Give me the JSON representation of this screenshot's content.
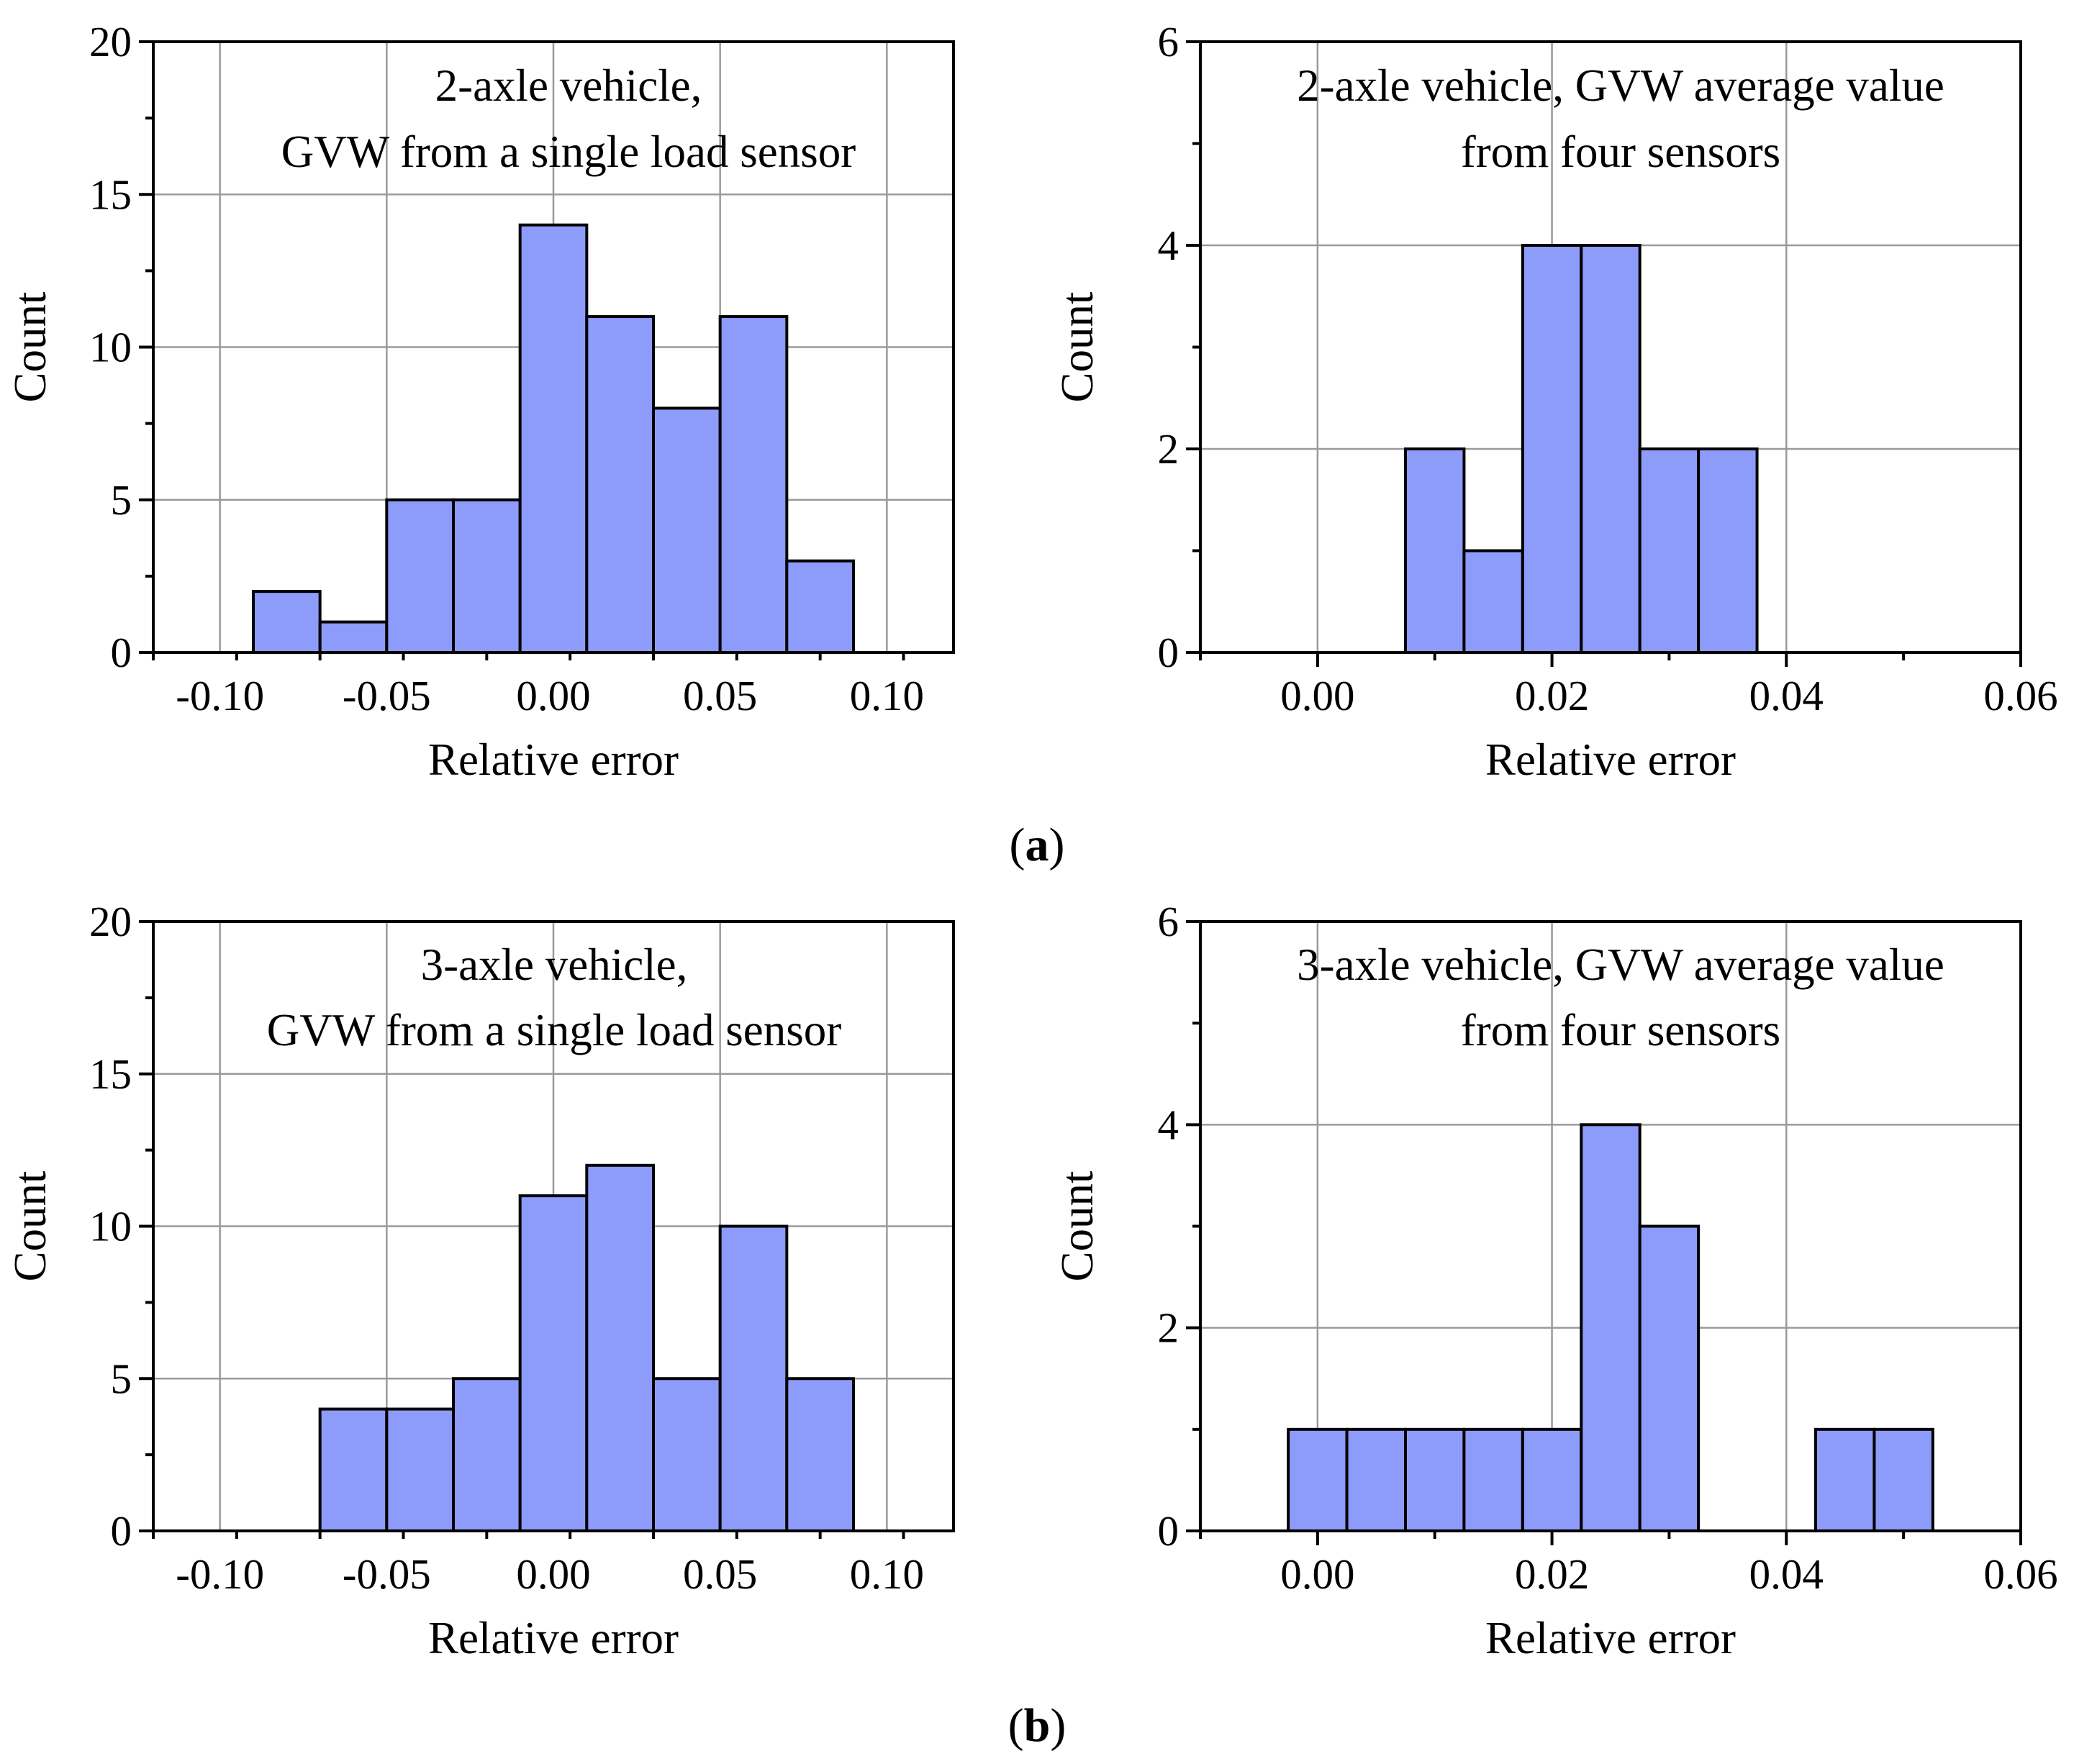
{
  "figure": {
    "caption_a_letter": "a",
    "caption_b_letter": "b",
    "colors": {
      "bar_fill": "#8d9bfb",
      "bar_stroke": "#000000",
      "grid": "#9a9a9a",
      "axis": "#000000"
    }
  },
  "chart_data": [
    {
      "type": "bar",
      "panel": "a-left",
      "title_lines": [
        "2-axle vehicle,",
        "GVW from a single load sensor"
      ],
      "xlabel": "Relative error",
      "ylabel": "Count",
      "xlim": [
        -0.12,
        0.12
      ],
      "ylim": [
        0,
        20
      ],
      "xticks": [
        -0.1,
        -0.05,
        0.0,
        0.05,
        0.1
      ],
      "xtick_labels": [
        "-0.10",
        "-0.05",
        "0.00",
        "0.05",
        "0.10"
      ],
      "yticks": [
        0,
        5,
        10,
        15,
        20
      ],
      "ytick_labels": [
        "0",
        "5",
        "10",
        "15",
        "20"
      ],
      "bin_width": 0.02,
      "bin_starts": [
        -0.09,
        -0.07,
        -0.05,
        -0.03,
        -0.01,
        0.01,
        0.03,
        0.05,
        0.07
      ],
      "values": [
        2,
        1,
        5,
        5,
        14,
        11,
        8,
        11,
        3
      ],
      "grid": true
    },
    {
      "type": "bar",
      "panel": "a-right",
      "title_lines": [
        "2-axle vehicle, GVW average value",
        "from four sensors"
      ],
      "xlabel": "Relative error",
      "ylabel": "Count",
      "xlim": [
        -0.01,
        0.06
      ],
      "ylim": [
        0,
        6
      ],
      "xticks": [
        0.0,
        0.02,
        0.04,
        0.06
      ],
      "xtick_labels": [
        "0.00",
        "0.02",
        "0.04",
        "0.06"
      ],
      "yticks": [
        0,
        2,
        4,
        6
      ],
      "ytick_labels": [
        "0",
        "2",
        "4",
        "6"
      ],
      "bin_width": 0.005,
      "bin_starts": [
        0.0075,
        0.0125,
        0.0175,
        0.0225,
        0.0275,
        0.0325
      ],
      "values": [
        2,
        1,
        4,
        4,
        2,
        2
      ],
      "grid": true
    },
    {
      "type": "bar",
      "panel": "b-left",
      "title_lines": [
        "3-axle vehicle,",
        "GVW from a single load sensor"
      ],
      "xlabel": "Relative error",
      "ylabel": "Count",
      "xlim": [
        -0.12,
        0.12
      ],
      "ylim": [
        0,
        20
      ],
      "xticks": [
        -0.1,
        -0.05,
        0.0,
        0.05,
        0.1
      ],
      "xtick_labels": [
        "-0.10",
        "-0.05",
        "0.00",
        "0.05",
        "0.10"
      ],
      "yticks": [
        0,
        5,
        10,
        15,
        20
      ],
      "ytick_labels": [
        "0",
        "5",
        "10",
        "15",
        "20"
      ],
      "bin_width": 0.02,
      "bin_starts": [
        -0.07,
        -0.05,
        -0.03,
        -0.01,
        0.01,
        0.03,
        0.05,
        0.07
      ],
      "values": [
        4,
        4,
        5,
        11,
        12,
        5,
        10,
        5
      ],
      "grid": true
    },
    {
      "type": "bar",
      "panel": "b-right",
      "title_lines": [
        "3-axle vehicle, GVW average value",
        "from four sensors"
      ],
      "xlabel": "Relative error",
      "ylabel": "Count",
      "xlim": [
        -0.01,
        0.06
      ],
      "ylim": [
        0,
        6
      ],
      "xticks": [
        0.0,
        0.02,
        0.04,
        0.06
      ],
      "xtick_labels": [
        "0.00",
        "0.02",
        "0.04",
        "0.06"
      ],
      "yticks": [
        0,
        2,
        4,
        6
      ],
      "ytick_labels": [
        "0",
        "2",
        "4",
        "6"
      ],
      "bin_width": 0.005,
      "bin_starts": [
        -0.0025,
        0.0025,
        0.0075,
        0.0125,
        0.0175,
        0.0225,
        0.0275,
        0.0325,
        0.0375,
        0.0425,
        0.0475
      ],
      "values": [
        1,
        1,
        1,
        1,
        1,
        4,
        3,
        0,
        0,
        1,
        1
      ],
      "grid": true
    }
  ]
}
